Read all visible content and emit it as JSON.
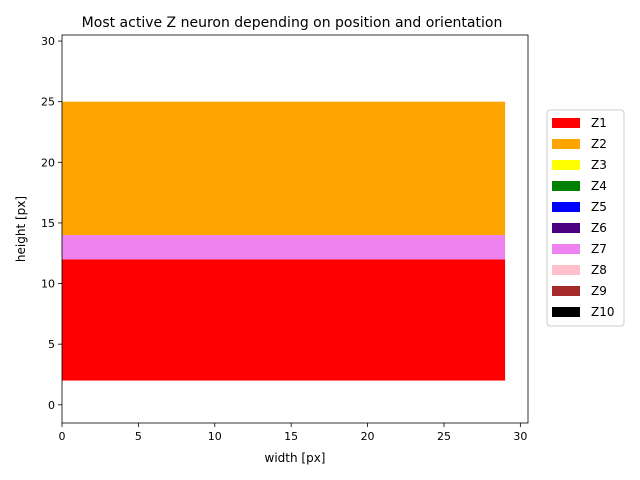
{
  "chart_data": {
    "type": "area",
    "title": "Most active Z neuron depending on position and orientation",
    "xlabel": "width [px]",
    "ylabel": "height [px]",
    "xlim": [
      0,
      30.5
    ],
    "ylim": [
      -1.5,
      30.5
    ],
    "xticks": [
      0,
      5,
      10,
      15,
      20,
      25,
      30
    ],
    "yticks": [
      0,
      5,
      10,
      15,
      20,
      25,
      30
    ],
    "grid": false,
    "legend_position": "right",
    "regions": [
      {
        "series": "Z1",
        "x": [
          0,
          29
        ],
        "y": [
          2,
          12
        ]
      },
      {
        "series": "Z7",
        "x": [
          0,
          29
        ],
        "y": [
          12,
          14
        ]
      },
      {
        "series": "Z2",
        "x": [
          0,
          29
        ],
        "y": [
          14,
          25
        ]
      }
    ],
    "series": [
      {
        "name": "Z1",
        "color": "#ff0000"
      },
      {
        "name": "Z2",
        "color": "#ffa500"
      },
      {
        "name": "Z3",
        "color": "#ffff00"
      },
      {
        "name": "Z4",
        "color": "#008000"
      },
      {
        "name": "Z5",
        "color": "#0000ff"
      },
      {
        "name": "Z6",
        "color": "#4b0082"
      },
      {
        "name": "Z7",
        "color": "#ee82ee"
      },
      {
        "name": "Z8",
        "color": "#ffc0cb"
      },
      {
        "name": "Z9",
        "color": "#a52a2a"
      },
      {
        "name": "Z10",
        "color": "#000000"
      }
    ]
  }
}
